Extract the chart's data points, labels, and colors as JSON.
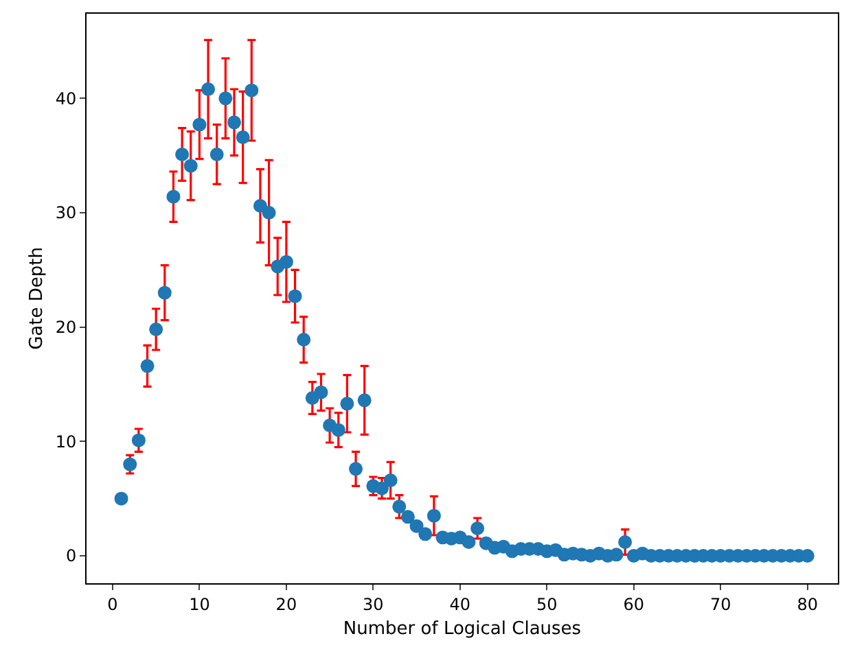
{
  "chart_data": {
    "type": "scatter",
    "xlabel": "Number of Logical Clauses",
    "ylabel": "Gate Depth",
    "x": [
      1,
      2,
      3,
      4,
      5,
      6,
      7,
      8,
      9,
      10,
      11,
      12,
      13,
      14,
      15,
      16,
      17,
      18,
      19,
      20,
      21,
      22,
      23,
      24,
      25,
      26,
      27,
      28,
      29,
      30,
      31,
      32,
      33,
      34,
      35,
      36,
      37,
      38,
      39,
      40,
      41,
      42,
      43,
      44,
      45,
      46,
      47,
      48,
      49,
      50,
      51,
      52,
      53,
      54,
      55,
      56,
      57,
      58,
      59,
      60,
      61,
      62,
      63,
      64,
      65,
      66,
      67,
      68,
      69,
      70,
      71,
      72,
      73,
      74,
      75,
      76,
      77,
      78,
      79,
      80
    ],
    "series": [
      {
        "color": "#1f77b4",
        "values": [
          5.0,
          8.0,
          10.1,
          16.6,
          19.8,
          23.0,
          31.4,
          35.1,
          34.1,
          37.7,
          40.8,
          35.1,
          40.0,
          37.9,
          36.6,
          40.7,
          30.6,
          30.0,
          25.3,
          25.7,
          22.7,
          18.9,
          13.8,
          14.3,
          11.4,
          11.0,
          13.3,
          7.6,
          13.6,
          6.1,
          5.9,
          6.6,
          4.3,
          3.4,
          2.6,
          1.9,
          3.5,
          1.6,
          1.5,
          1.6,
          1.2,
          2.4,
          1.1,
          0.7,
          0.8,
          0.4,
          0.6,
          0.6,
          0.6,
          0.4,
          0.5,
          0.1,
          0.2,
          0.1,
          0.0,
          0.2,
          0.0,
          0.1,
          1.2,
          0.0,
          0.2,
          0,
          0,
          0,
          0,
          0,
          0,
          0,
          0,
          0,
          0,
          0,
          0,
          0,
          0,
          0,
          0,
          0,
          0,
          0
        ],
        "errors": [
          null,
          0.8,
          1.0,
          1.8,
          1.8,
          2.4,
          2.2,
          2.3,
          3.0,
          3.0,
          4.3,
          2.6,
          3.5,
          2.9,
          4.0,
          4.4,
          3.2,
          4.6,
          2.5,
          3.5,
          2.3,
          2.0,
          1.4,
          1.6,
          1.5,
          1.5,
          2.5,
          1.5,
          3.0,
          0.8,
          0.9,
          1.6,
          1.0,
          null,
          null,
          null,
          1.7,
          null,
          null,
          null,
          null,
          0.9,
          null,
          null,
          null,
          null,
          null,
          null,
          null,
          null,
          null,
          null,
          null,
          null,
          null,
          null,
          null,
          null,
          1.1,
          null,
          null,
          null,
          null,
          null,
          null,
          null,
          null,
          null,
          null,
          null,
          null,
          null,
          null,
          null,
          null,
          null,
          null,
          null,
          null,
          null
        ]
      }
    ],
    "xlim": [
      -3,
      83.5
    ],
    "ylim": [
      -2.4,
      47.4
    ],
    "xticks": [
      0,
      10,
      20,
      30,
      40,
      50,
      60,
      70,
      80
    ],
    "yticks": [
      0,
      10,
      20,
      30,
      40
    ],
    "marker": "circle"
  }
}
